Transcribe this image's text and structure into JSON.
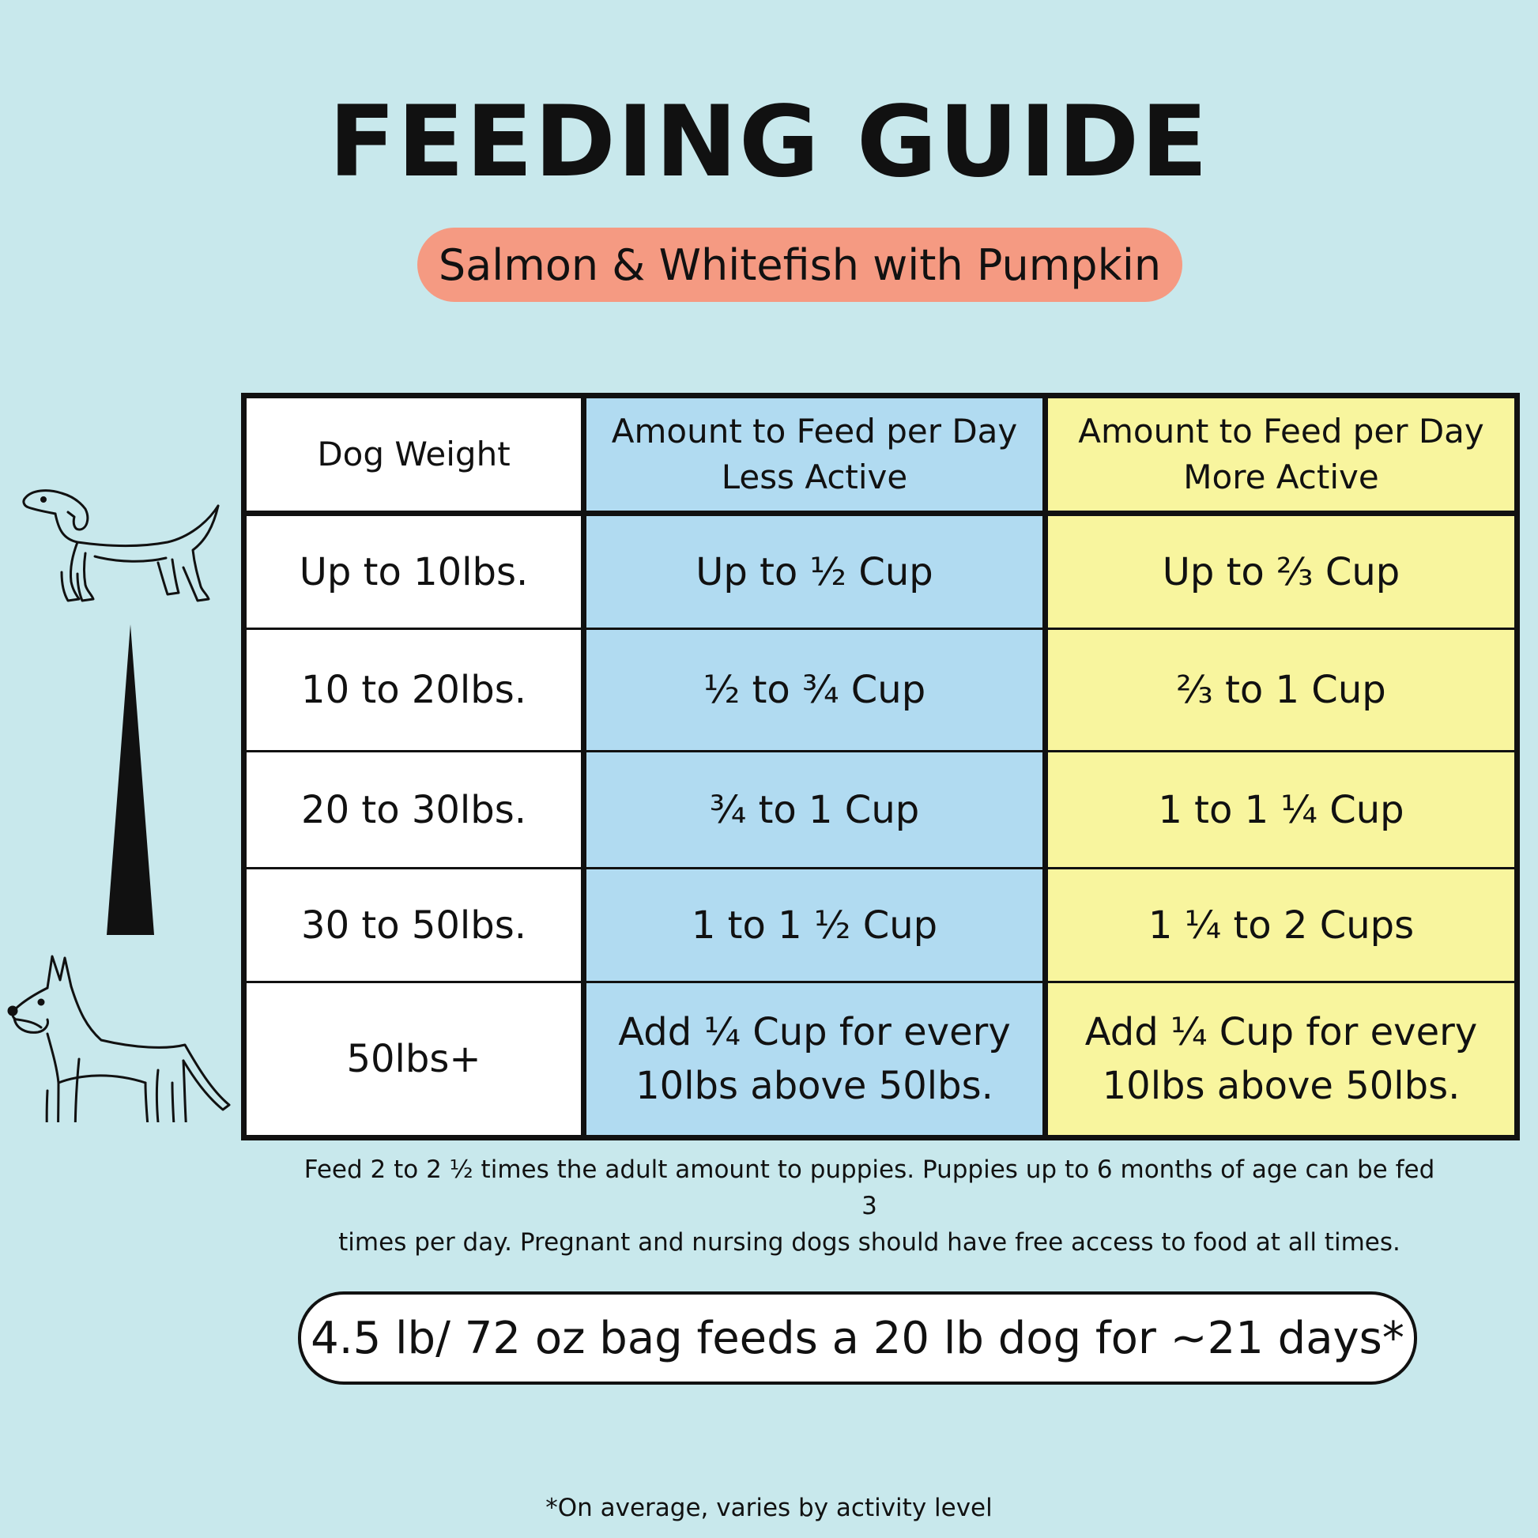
{
  "title": "FEEDING GUIDE",
  "subtitle": "Salmon & Whitefish with Pumpkin",
  "table": {
    "headers": {
      "weight": "Dog Weight",
      "less_active_line1": "Amount to Feed per Day",
      "less_active_line2": "Less Active",
      "more_active_line1": "Amount to Feed per Day",
      "more_active_line2": "More Active"
    },
    "rows": [
      {
        "weight": "Up to 10lbs.",
        "less": "Up to ½ Cup",
        "more": "Up to ⅔ Cup"
      },
      {
        "weight": "10 to 20lbs.",
        "less": "½ to ¾ Cup",
        "more": "⅔ to 1 Cup"
      },
      {
        "weight": "20 to 30lbs.",
        "less": "¾ to 1 Cup",
        "more": "1 to 1 ¼ Cup"
      },
      {
        "weight": "30 to 50lbs.",
        "less": "1 to 1 ½ Cup",
        "more": "1 ¼ to 2 Cups"
      },
      {
        "weight": "50lbs+",
        "less_line1": "Add ¼ Cup for every",
        "less_line2": "10lbs above 50lbs.",
        "more_line1": "Add ¼ Cup for every",
        "more_line2": "10lbs above 50lbs."
      }
    ]
  },
  "note_line1": "Feed 2 to 2 ½ times the adult amount to puppies. Puppies up to 6 months of age can be fed 3",
  "note_line2": "times per day. Pregnant and nursing dogs should have free access to food at all times.",
  "bag_info": "4.5 lb/ 72 oz bag feeds a 20 lb dog for ~21 days*",
  "footnote": "*On average, varies by activity level",
  "colors": {
    "background": "#c8e8ec",
    "pill": "#f59a82",
    "less_active": "#b1dbf1",
    "more_active": "#f8f59e"
  },
  "icons": [
    "small-dog-icon",
    "size-scale-triangle-icon",
    "large-dog-icon"
  ]
}
